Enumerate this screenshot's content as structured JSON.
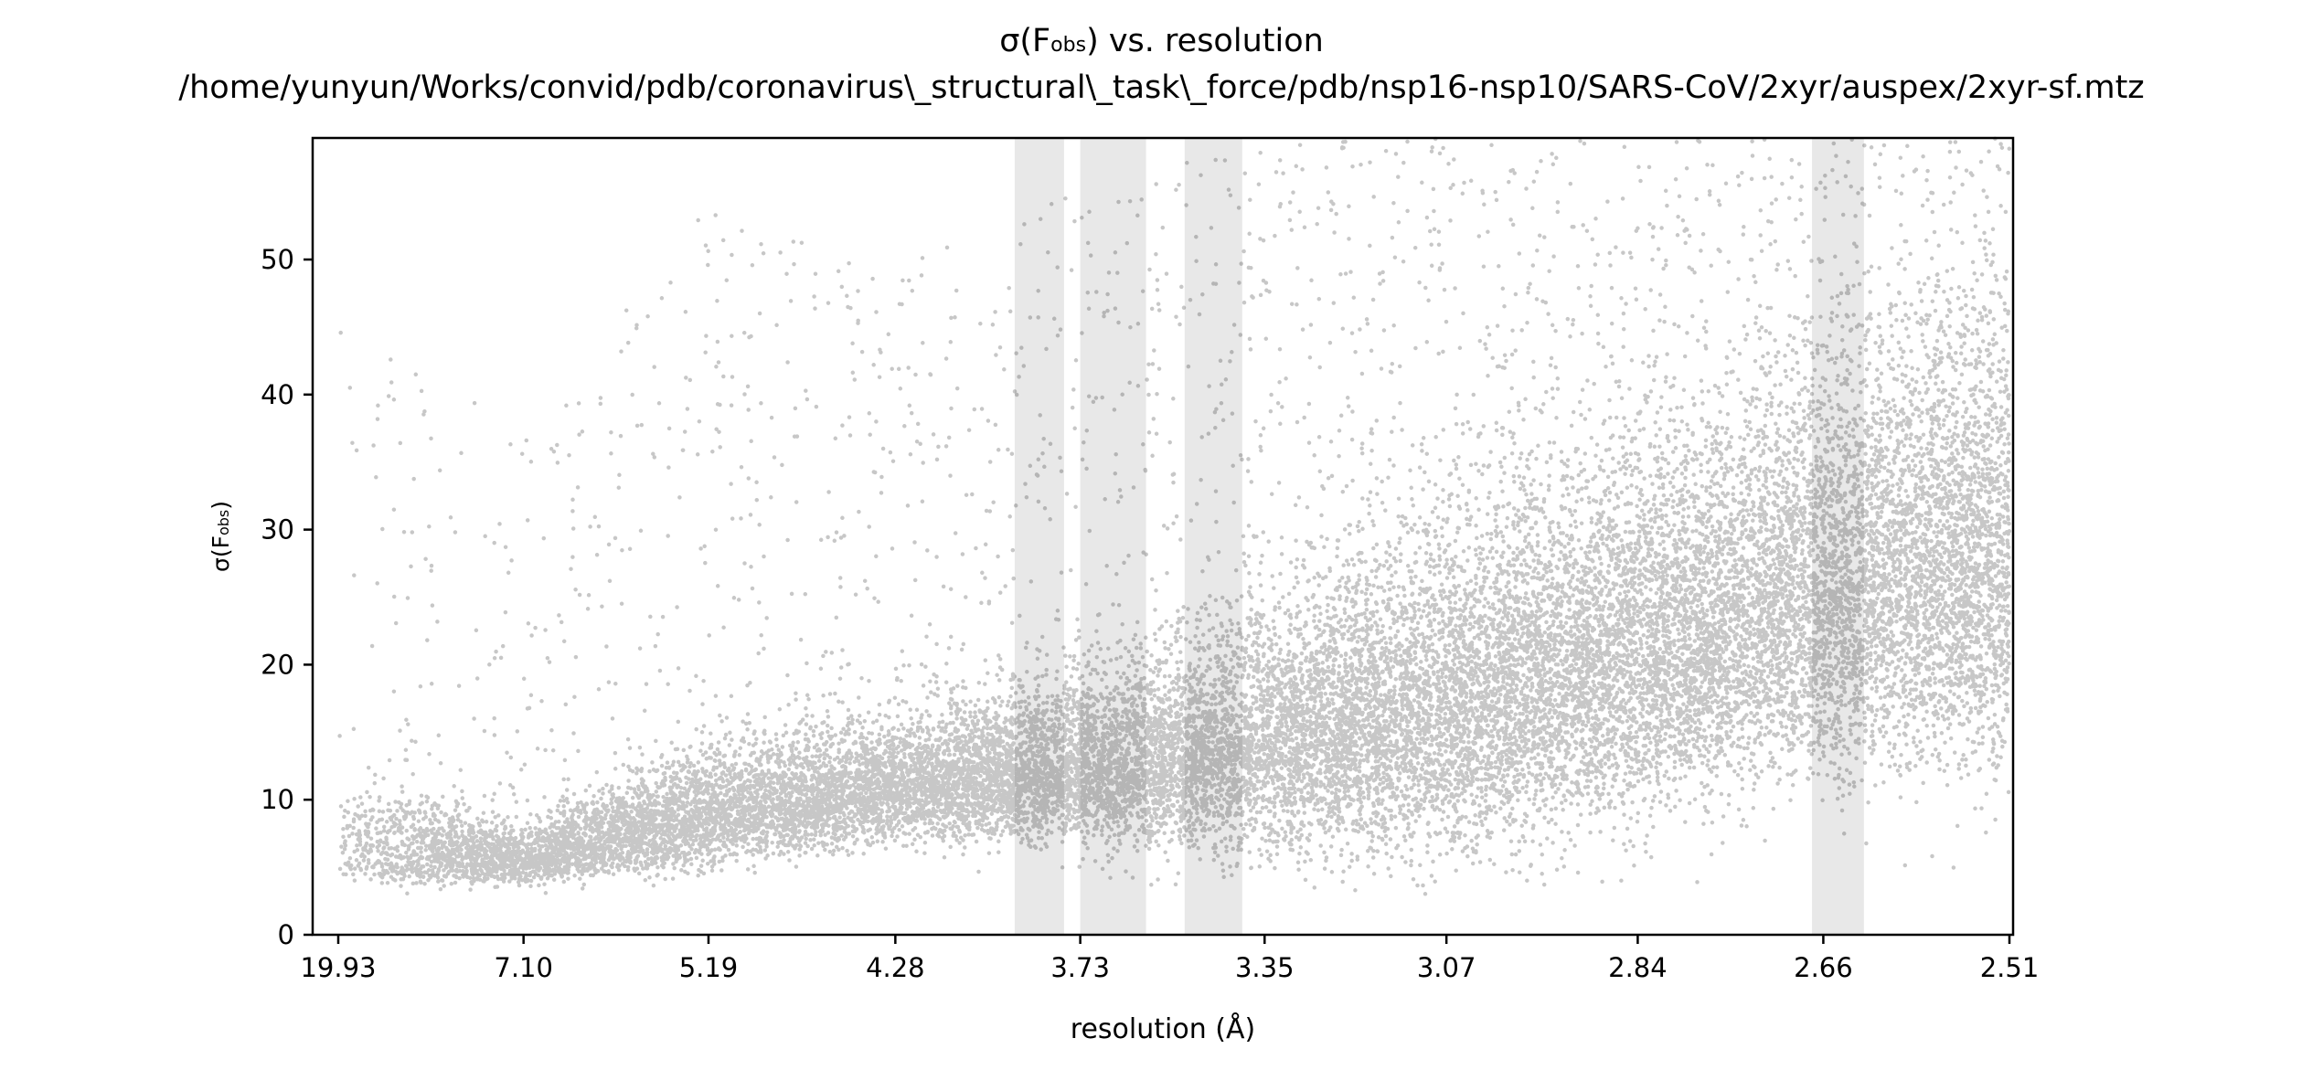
{
  "chart_data": {
    "type": "scatter",
    "title_main": "σ(F",
    "title_sub": "obs",
    "title_rest": ") vs. resolution",
    "subtitle": "/home/yunyun/Works/convid/pdb/coronavirus\\_structural\\_task\\_force/pdb/nsp16-nsp10/SARS-CoV/2xyr/auspex/2xyr-sf.mtz",
    "xlabel": "resolution (Å)",
    "ylabel_main": "σ(F",
    "ylabel_sub": "obs",
    "ylabel_rest": ")",
    "x_axis": "resolution, plotted as 1/d² (Å⁻²)",
    "x_tick_labels": [
      "19.93",
      "7.10",
      "5.19",
      "4.28",
      "3.73",
      "3.35",
      "3.07",
      "2.84",
      "2.66",
      "2.51"
    ],
    "x_tick_values": [
      19.93,
      7.1,
      5.19,
      4.28,
      3.73,
      3.35,
      3.07,
      2.84,
      2.66,
      2.51
    ],
    "xlim": [
      19.93,
      2.51
    ],
    "ylim": [
      0,
      59
    ],
    "y_ticks": [
      0,
      10,
      20,
      30,
      40,
      50
    ],
    "grid": false,
    "legend": "none",
    "point_color": "#000000",
    "point_alpha": 0.22,
    "highlight_color": "#e8e8e8",
    "highlighted_resolution_bands": [
      [
        3.9,
        3.77
      ],
      [
        3.73,
        3.58
      ],
      [
        3.5,
        3.39
      ],
      [
        2.67,
        2.625
      ]
    ],
    "series": [
      {
        "points_estimated": 30000,
        "trend_by_resolution": [
          {
            "d": 19.93,
            "median": 6,
            "spread": 3,
            "upper_tail": 45
          },
          {
            "d": 7.1,
            "median": 5,
            "spread": 1.5,
            "upper_tail": 38
          },
          {
            "d": 5.19,
            "median": 8,
            "spread": 3,
            "upper_tail": 54
          },
          {
            "d": 4.28,
            "median": 10,
            "spread": 3,
            "upper_tail": 50
          },
          {
            "d": 3.73,
            "median": 11,
            "spread": 4,
            "upper_tail": 55
          },
          {
            "d": 3.35,
            "median": 12,
            "spread": 6,
            "upper_tail": 59
          },
          {
            "d": 3.07,
            "median": 14,
            "spread": 8,
            "upper_tail": 59
          },
          {
            "d": 2.84,
            "median": 18,
            "spread": 9,
            "upper_tail": 59
          },
          {
            "d": 2.66,
            "median": 22,
            "spread": 10,
            "upper_tail": 59
          },
          {
            "d": 2.51,
            "median": 24,
            "spread": 11,
            "upper_tail": 59
          }
        ]
      }
    ]
  }
}
